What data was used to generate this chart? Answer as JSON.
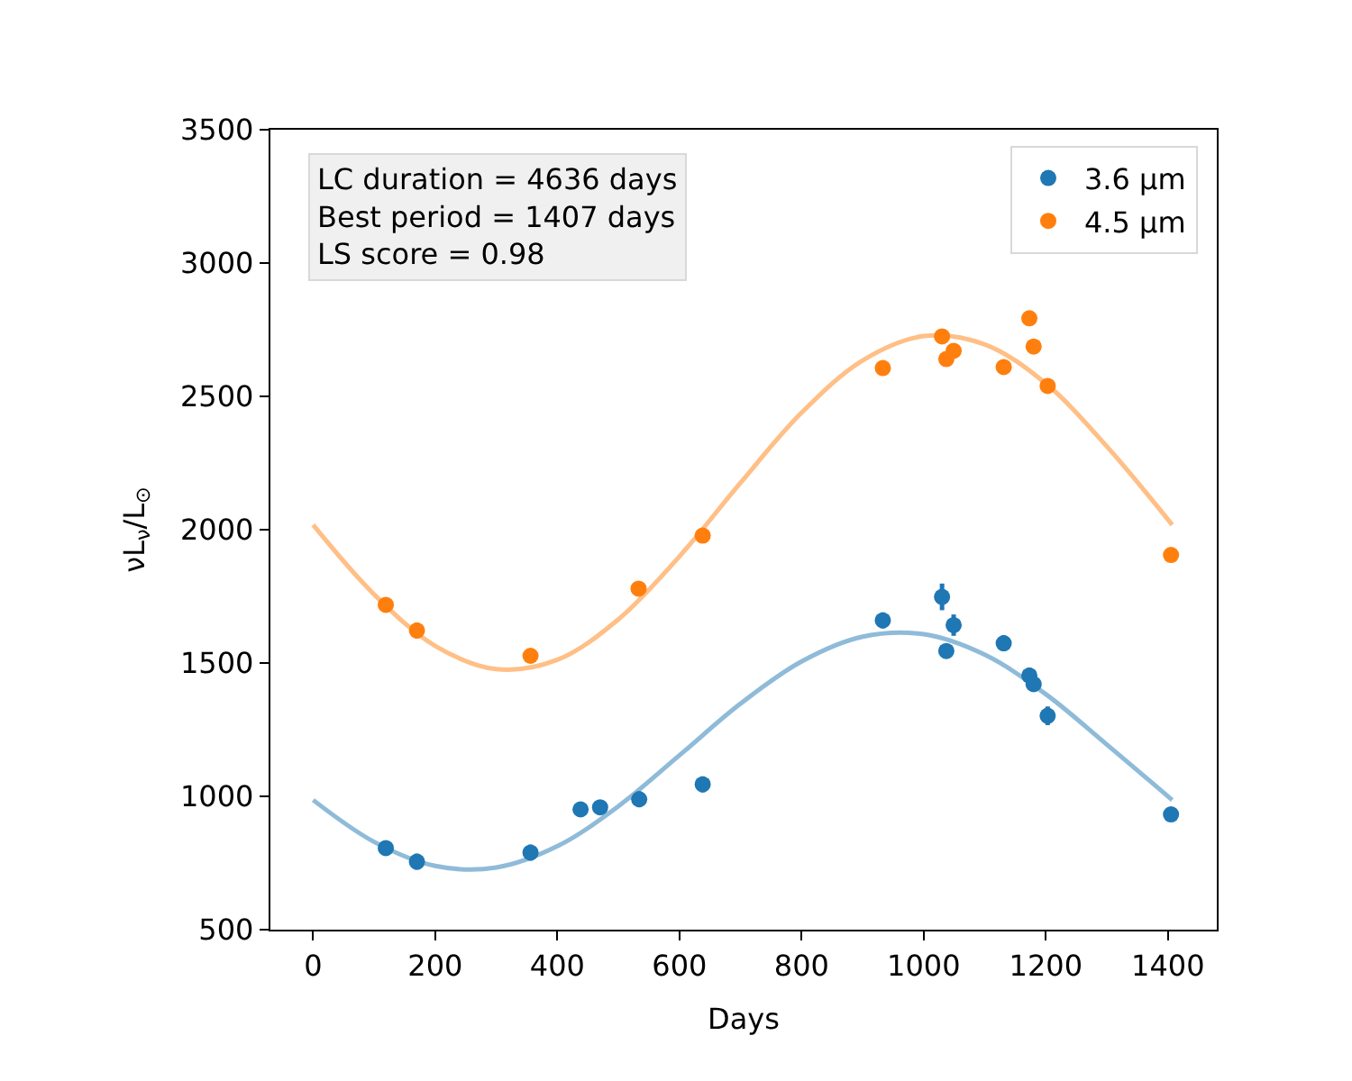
{
  "chart_data": {
    "type": "scatter",
    "xlabel": "Days",
    "ylabel": "νL$_{ν}$/L$_{⊙}$",
    "xlim": [
      -70,
      1480
    ],
    "ylim": [
      500,
      3500
    ],
    "xticks": [
      0,
      200,
      400,
      600,
      800,
      1000,
      1200,
      1400
    ],
    "yticks": [
      500,
      1000,
      1500,
      2000,
      2500,
      3000,
      3500
    ],
    "legend": "top right",
    "annotations": [
      "LC duration = 4636 days\nBest period = 1407 days\nLS score = 0.98"
    ],
    "series": [
      {
        "type": "line",
        "color": "#8fbbd9",
        "x": [
          0,
          100,
          200,
          300,
          400,
          500,
          600,
          700,
          800,
          900,
          1000,
          1100,
          1200,
          1300,
          1407
        ],
        "values": [
          986,
          829,
          739,
          733,
          813,
          963,
          1154,
          1348,
          1506,
          1599,
          1608,
          1531,
          1383,
          1194,
          986
        ]
      },
      {
        "type": "line",
        "color": "#ffbf86",
        "x": [
          0,
          100,
          200,
          300,
          400,
          500,
          600,
          700,
          800,
          900,
          1000,
          1100,
          1200,
          1300,
          1407
        ],
        "values": [
          2018,
          1757,
          1564,
          1477,
          1512,
          1664,
          1900,
          2176,
          2439,
          2635,
          2726,
          2695,
          2548,
          2312,
          2018
        ]
      },
      {
        "name": "3.6 μm",
        "marker": "circle",
        "color": "#1f77b4",
        "x": [
          119,
          170,
          356,
          438,
          470,
          534,
          638,
          933,
          1030,
          1037,
          1049,
          1131,
          1173,
          1180,
          1203,
          1405
        ],
        "values": [
          806,
          755,
          789,
          951,
          959,
          989,
          1045,
          1660,
          1748,
          1545,
          1642,
          1574,
          1453,
          1421,
          1302,
          932
        ],
        "errors": [
          20,
          30,
          30,
          25,
          25,
          30,
          30,
          30,
          50,
          20,
          40,
          30,
          30,
          25,
          35,
          20
        ]
      },
      {
        "name": "4.5 μm",
        "marker": "circle",
        "color": "#ff7f0e",
        "x": [
          119,
          170,
          356,
          533,
          638,
          933,
          1030,
          1037,
          1049,
          1131,
          1173,
          1180,
          1203,
          1405
        ],
        "values": [
          1718,
          1622,
          1527,
          1779,
          1978,
          2606,
          2725,
          2640,
          2671,
          2610,
          2793,
          2687,
          2539,
          1905
        ],
        "errors": [
          20,
          30,
          25,
          20,
          20,
          20,
          20,
          20,
          20,
          20,
          20,
          20,
          20,
          20
        ]
      }
    ]
  }
}
